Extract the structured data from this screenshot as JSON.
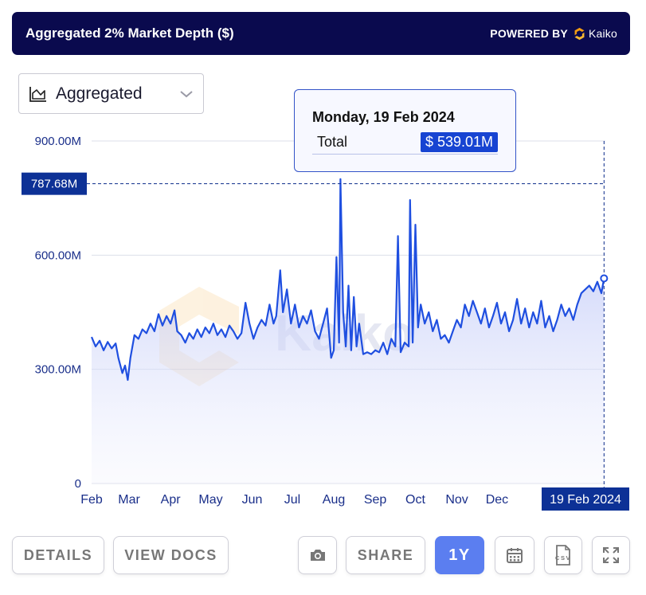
{
  "header": {
    "title": "Aggregated 2% Market Depth ($)",
    "powered_by": "POWERED BY",
    "brand": "Kaiko"
  },
  "dropdown": {
    "label": "Aggregated",
    "icon": "area-chart-icon"
  },
  "watermark": "Kaiko",
  "tooltip": {
    "date": "Monday, 19 Feb 2024",
    "label": "Total",
    "value": "$ 539.01M"
  },
  "crosshair": {
    "y_label": "787.68M",
    "y_value": 787.68,
    "x_label": "19 Feb 2024"
  },
  "buttons": {
    "details": "DETAILS",
    "view_docs": "VIEW DOCS",
    "camera": "camera-icon",
    "share": "SHARE",
    "range": "1Y",
    "calendar": "calendar-icon",
    "csv": "CSV",
    "expand": "expand-icon"
  },
  "colors": {
    "header_bg": "#0a0a4e",
    "line": "#1f4fe0",
    "axis_text": "#1a2f8a",
    "accent": "#1744d2",
    "kaiko_orange": "#f39c12"
  },
  "chart_data": {
    "type": "area",
    "title": "Aggregated 2% Market Depth ($)",
    "x_ticks": [
      "Feb",
      "Mar",
      "Apr",
      "May",
      "Jun",
      "Jul",
      "Aug",
      "Sep",
      "Oct",
      "Nov",
      "Dec"
    ],
    "y_ticks": [
      {
        "value": 0,
        "label": "0"
      },
      {
        "value": 300,
        "label": "300.00M"
      },
      {
        "value": 600,
        "label": "600.00M"
      },
      {
        "value": 900,
        "label": "900.00M"
      }
    ],
    "ylim": [
      0,
      900
    ],
    "xlim": [
      "2023-02-01",
      "2024-02-20"
    ],
    "grid": true,
    "series": [
      {
        "values": [
          [
            "2023-02-01",
            385
          ],
          [
            "2023-02-04",
            360
          ],
          [
            "2023-02-07",
            375
          ],
          [
            "2023-02-10",
            350
          ],
          [
            "2023-02-13",
            372
          ],
          [
            "2023-02-16",
            355
          ],
          [
            "2023-02-19",
            368
          ],
          [
            "2023-02-21",
            330
          ],
          [
            "2023-02-24",
            290
          ],
          [
            "2023-02-26",
            310
          ],
          [
            "2023-02-28",
            272
          ],
          [
            "2023-03-02",
            330
          ],
          [
            "2023-03-05",
            390
          ],
          [
            "2023-03-08",
            380
          ],
          [
            "2023-03-11",
            405
          ],
          [
            "2023-03-14",
            395
          ],
          [
            "2023-03-17",
            420
          ],
          [
            "2023-03-20",
            400
          ],
          [
            "2023-03-23",
            445
          ],
          [
            "2023-03-26",
            415
          ],
          [
            "2023-03-29",
            440
          ],
          [
            "2023-04-01",
            420
          ],
          [
            "2023-04-04",
            455
          ],
          [
            "2023-04-06",
            400
          ],
          [
            "2023-04-09",
            390
          ],
          [
            "2023-04-12",
            370
          ],
          [
            "2023-04-15",
            395
          ],
          [
            "2023-04-18",
            380
          ],
          [
            "2023-04-21",
            405
          ],
          [
            "2023-04-24",
            385
          ],
          [
            "2023-04-27",
            410
          ],
          [
            "2023-04-30",
            395
          ],
          [
            "2023-05-03",
            420
          ],
          [
            "2023-05-06",
            390
          ],
          [
            "2023-05-09",
            405
          ],
          [
            "2023-05-12",
            385
          ],
          [
            "2023-05-15",
            415
          ],
          [
            "2023-05-18",
            400
          ],
          [
            "2023-05-21",
            380
          ],
          [
            "2023-05-24",
            395
          ],
          [
            "2023-05-27",
            475
          ],
          [
            "2023-05-30",
            420
          ],
          [
            "2023-06-02",
            380
          ],
          [
            "2023-06-05",
            410
          ],
          [
            "2023-06-08",
            430
          ],
          [
            "2023-06-11",
            415
          ],
          [
            "2023-06-14",
            470
          ],
          [
            "2023-06-17",
            420
          ],
          [
            "2023-06-19",
            440
          ],
          [
            "2023-06-22",
            560
          ],
          [
            "2023-06-24",
            450
          ],
          [
            "2023-06-27",
            510
          ],
          [
            "2023-06-30",
            420
          ],
          [
            "2023-07-03",
            470
          ],
          [
            "2023-07-06",
            410
          ],
          [
            "2023-07-09",
            440
          ],
          [
            "2023-07-12",
            420
          ],
          [
            "2023-07-15",
            455
          ],
          [
            "2023-07-18",
            400
          ],
          [
            "2023-07-21",
            380
          ],
          [
            "2023-07-24",
            420
          ],
          [
            "2023-07-27",
            460
          ],
          [
            "2023-07-30",
            330
          ],
          [
            "2023-08-01",
            350
          ],
          [
            "2023-08-03",
            595
          ],
          [
            "2023-08-05",
            370
          ],
          [
            "2023-08-06",
            800
          ],
          [
            "2023-08-08",
            450
          ],
          [
            "2023-08-10",
            360
          ],
          [
            "2023-08-12",
            520
          ],
          [
            "2023-08-14",
            350
          ],
          [
            "2023-08-16",
            490
          ],
          [
            "2023-08-18",
            360
          ],
          [
            "2023-08-20",
            420
          ],
          [
            "2023-08-23",
            340
          ],
          [
            "2023-08-26",
            345
          ],
          [
            "2023-08-29",
            340
          ],
          [
            "2023-09-01",
            350
          ],
          [
            "2023-09-04",
            345
          ],
          [
            "2023-09-07",
            370
          ],
          [
            "2023-09-10",
            340
          ],
          [
            "2023-09-13",
            380
          ],
          [
            "2023-09-16",
            360
          ],
          [
            "2023-09-18",
            650
          ],
          [
            "2023-09-20",
            345
          ],
          [
            "2023-09-23",
            370
          ],
          [
            "2023-09-26",
            360
          ],
          [
            "2023-09-27",
            745
          ],
          [
            "2023-09-29",
            370
          ],
          [
            "2023-10-01",
            680
          ],
          [
            "2023-10-03",
            410
          ],
          [
            "2023-10-05",
            470
          ],
          [
            "2023-10-08",
            420
          ],
          [
            "2023-10-11",
            450
          ],
          [
            "2023-10-14",
            400
          ],
          [
            "2023-10-17",
            430
          ],
          [
            "2023-10-20",
            380
          ],
          [
            "2023-10-23",
            390
          ],
          [
            "2023-10-26",
            370
          ],
          [
            "2023-10-29",
            400
          ],
          [
            "2023-11-01",
            430
          ],
          [
            "2023-11-04",
            410
          ],
          [
            "2023-11-07",
            470
          ],
          [
            "2023-11-10",
            440
          ],
          [
            "2023-11-13",
            480
          ],
          [
            "2023-11-16",
            450
          ],
          [
            "2023-11-19",
            420
          ],
          [
            "2023-11-22",
            460
          ],
          [
            "2023-11-25",
            410
          ],
          [
            "2023-11-28",
            440
          ],
          [
            "2023-12-01",
            475
          ],
          [
            "2023-12-04",
            420
          ],
          [
            "2023-12-07",
            450
          ],
          [
            "2023-12-10",
            400
          ],
          [
            "2023-12-13",
            430
          ],
          [
            "2023-12-16",
            485
          ],
          [
            "2023-12-19",
            420
          ],
          [
            "2023-12-22",
            460
          ],
          [
            "2023-12-25",
            410
          ],
          [
            "2023-12-28",
            450
          ],
          [
            "2023-12-31",
            420
          ],
          [
            "2024-01-03",
            480
          ],
          [
            "2024-01-06",
            410
          ],
          [
            "2024-01-09",
            440
          ],
          [
            "2024-01-12",
            400
          ],
          [
            "2024-01-15",
            430
          ],
          [
            "2024-01-18",
            470
          ],
          [
            "2024-01-21",
            440
          ],
          [
            "2024-01-24",
            460
          ],
          [
            "2024-01-27",
            430
          ],
          [
            "2024-01-30",
            470
          ],
          [
            "2024-02-02",
            500
          ],
          [
            "2024-02-05",
            510
          ],
          [
            "2024-02-08",
            520
          ],
          [
            "2024-02-11",
            505
          ],
          [
            "2024-02-14",
            530
          ],
          [
            "2024-02-17",
            500
          ],
          [
            "2024-02-19",
            539.01
          ]
        ]
      }
    ]
  }
}
